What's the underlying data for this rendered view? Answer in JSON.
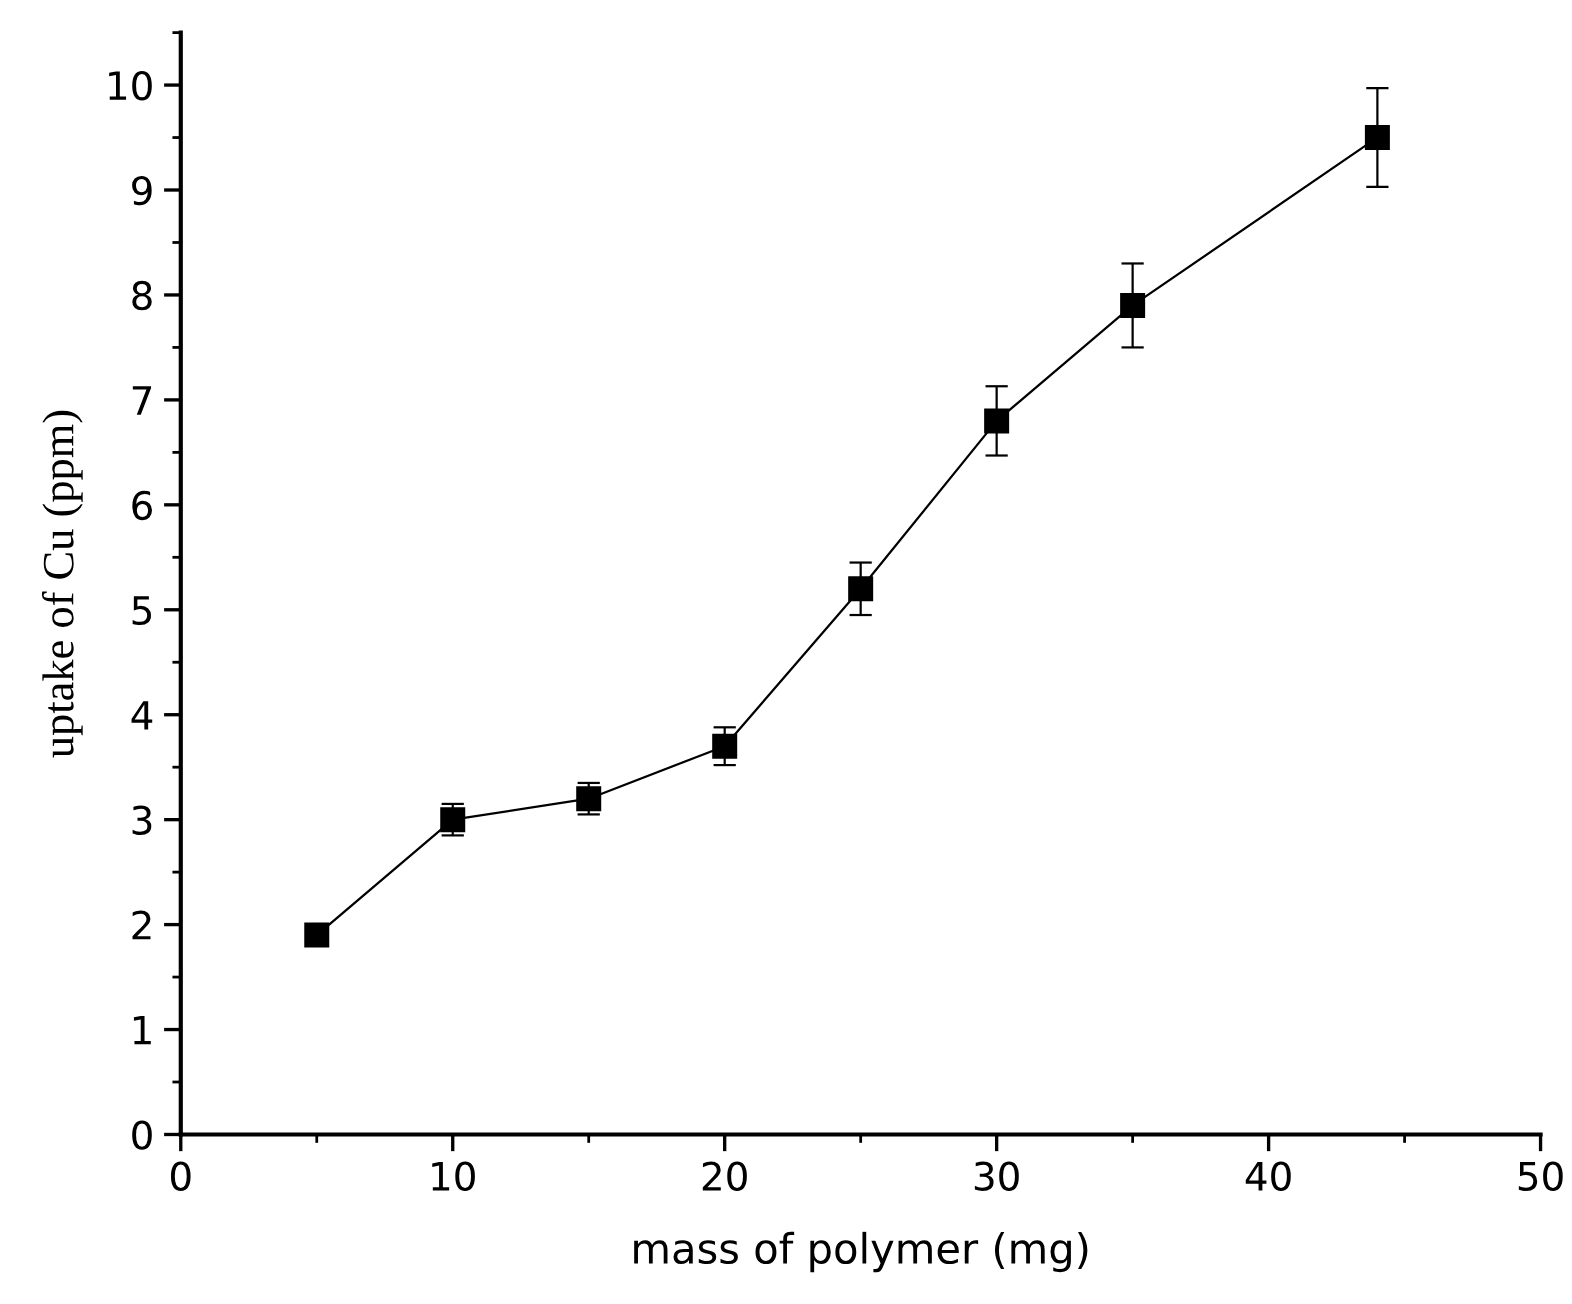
{
  "chart_data": {
    "type": "line",
    "xlabel": "mass of polymer (mg)",
    "ylabel": "uptake of Cu (ppm)",
    "x": [
      5,
      10,
      15,
      20,
      25,
      30,
      35,
      44
    ],
    "series": [
      {
        "color": "#000000",
        "values": [
          1.9,
          3.0,
          3.2,
          3.7,
          5.2,
          6.8,
          7.9,
          9.5
        ],
        "errors": [
          null,
          0.15,
          0.15,
          0.18,
          0.25,
          0.33,
          0.4,
          0.47
        ]
      }
    ],
    "marker": "square",
    "line_style": "solid",
    "grid": false,
    "legend": false,
    "xlim": [
      0,
      50
    ],
    "xticks": [
      0,
      10,
      20,
      30,
      40,
      50
    ],
    "ylim": [
      0,
      10.5
    ],
    "yticks": [
      0,
      1,
      2,
      3,
      4,
      5,
      6,
      7,
      8,
      9,
      10
    ]
  }
}
